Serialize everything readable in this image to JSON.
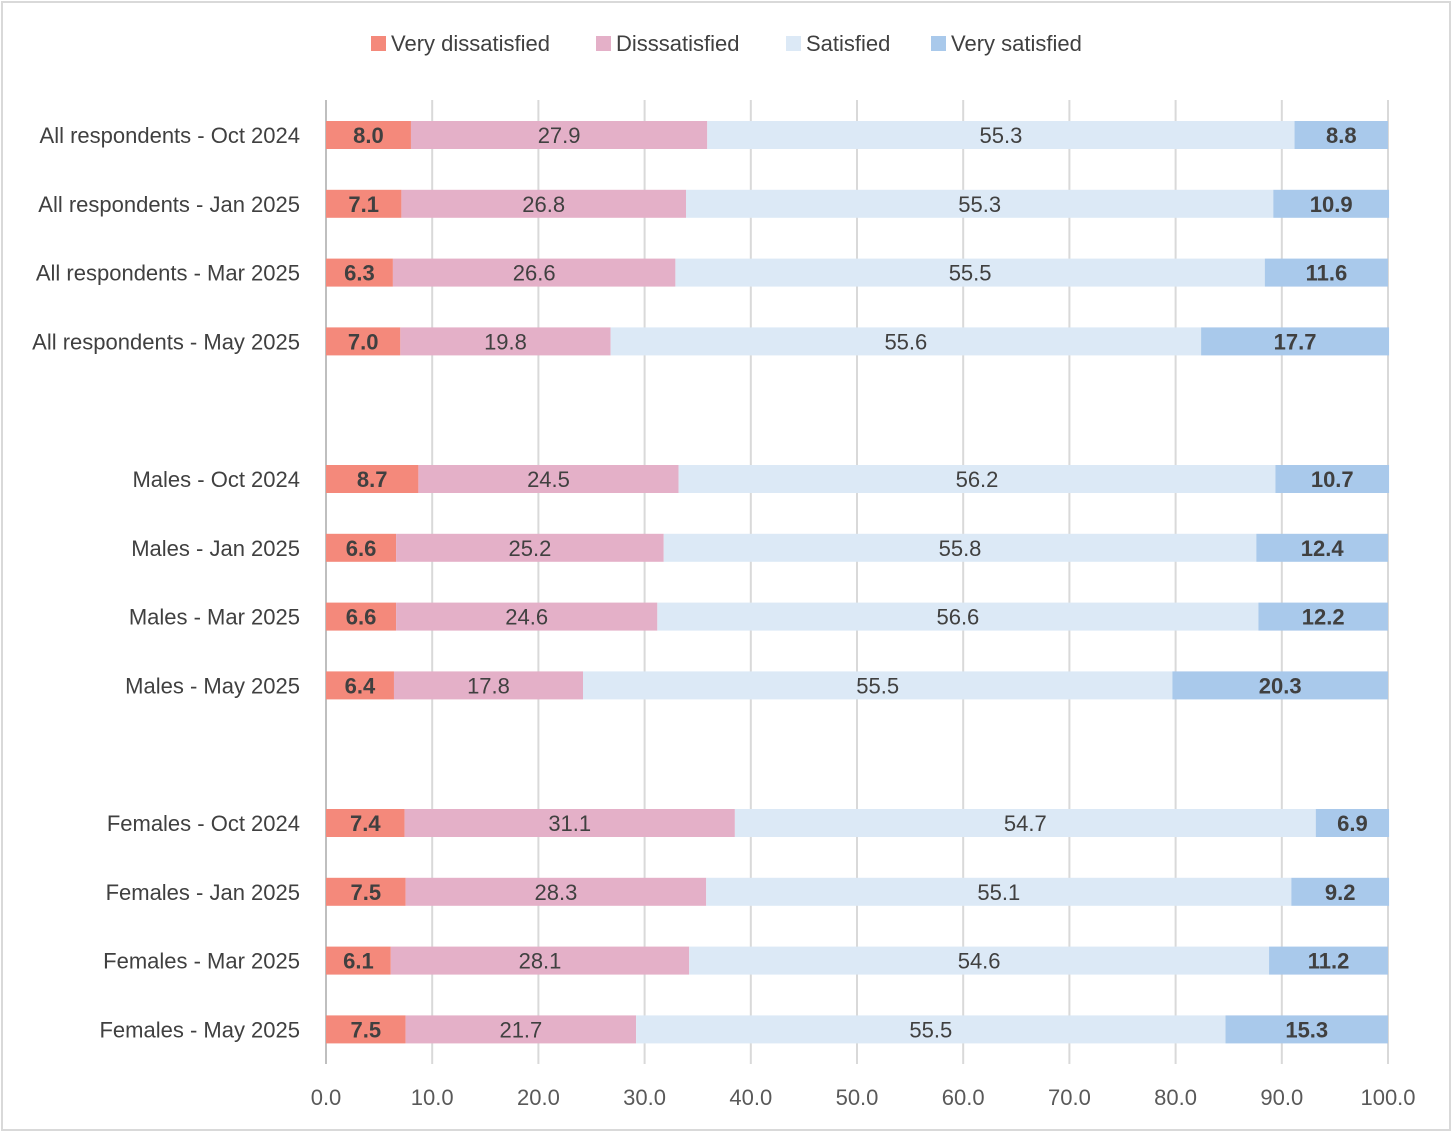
{
  "chart_data": {
    "type": "bar",
    "orientation": "horizontal",
    "stacked": true,
    "title": "",
    "xlabel": "",
    "ylabel": "",
    "xlim": [
      0,
      100
    ],
    "x_ticks": [
      "0.0",
      "10.0",
      "20.0",
      "30.0",
      "40.0",
      "50.0",
      "60.0",
      "70.0",
      "80.0",
      "90.0",
      "100.0"
    ],
    "grid": "vertical",
    "legend_position": "top",
    "categories": [
      "All respondents - Oct 2024",
      "All respondents - Jan 2025",
      "All respondents - Mar 2025",
      "All respondents - May 2025",
      "",
      "Males - Oct 2024",
      "Males - Jan 2025",
      "Males - Mar 2025",
      "Males - May 2025",
      "",
      "Females - Oct 2024",
      "Females - Jan 2025",
      "Females - Mar 2025",
      "Females - May 2025"
    ],
    "series": [
      {
        "name": "Very dissatisfied",
        "color": "#f4897b",
        "label_bold": true,
        "values": [
          8.0,
          7.1,
          6.3,
          7.0,
          null,
          8.7,
          6.6,
          6.6,
          6.4,
          null,
          7.4,
          7.5,
          6.1,
          7.5
        ],
        "labels": [
          "8.0",
          "7.1",
          "6.3",
          "7.0",
          "",
          "8.7",
          "6.6",
          "6.6",
          "6.4",
          "",
          "7.4",
          "7.5",
          "6.1",
          "7.5"
        ]
      },
      {
        "name": "Disssatisfied",
        "color": "#e4b0c8",
        "label_bold": false,
        "values": [
          27.9,
          26.8,
          26.6,
          19.8,
          null,
          24.5,
          25.2,
          24.6,
          17.8,
          null,
          31.1,
          28.3,
          28.1,
          21.7
        ],
        "labels": [
          "27.9",
          "26.8",
          "26.6",
          "19.8",
          "",
          "24.5",
          "25.2",
          "24.6",
          "17.8",
          "",
          "31.1",
          "28.3",
          "28.1",
          "21.7"
        ]
      },
      {
        "name": "Satisfied",
        "color": "#dce9f6",
        "label_bold": false,
        "values": [
          55.3,
          55.3,
          55.5,
          55.6,
          null,
          56.2,
          55.8,
          56.6,
          55.5,
          null,
          54.7,
          55.1,
          54.6,
          55.5
        ],
        "labels": [
          "55.3",
          "55.3",
          "55.5",
          "55.6",
          "",
          "56.2",
          "55.8",
          "56.6",
          "55.5",
          "",
          "54.7",
          "55.1",
          "54.6",
          "55.5"
        ]
      },
      {
        "name": "Very satisfied",
        "color": "#a9c9eb",
        "label_bold": true,
        "values": [
          8.8,
          10.9,
          11.6,
          17.7,
          null,
          10.7,
          12.4,
          12.2,
          20.3,
          null,
          6.9,
          9.2,
          11.2,
          15.3
        ],
        "labels": [
          "8.8",
          "10.9",
          "11.6",
          "17.7",
          "",
          "10.7",
          "12.4",
          "12.2",
          "20.3",
          "",
          "6.9",
          "9.2",
          "11.2",
          "15.3"
        ]
      }
    ],
    "colors": {
      "grid": "#d9d9d9",
      "axis": "#bfbfbf",
      "text": "#404040",
      "tick_text": "#595959"
    }
  }
}
